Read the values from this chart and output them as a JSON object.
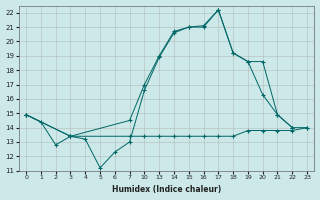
{
  "xlabel": "Humidex (Indice chaleur)",
  "bg_color": "#cce8e8",
  "grid_color": "#aaaaaa",
  "line_color": "#006666",
  "ylim": [
    11,
    22.5
  ],
  "yticks": [
    11,
    12,
    13,
    14,
    15,
    16,
    17,
    18,
    19,
    20,
    21,
    22
  ],
  "xtick_labels": [
    "0",
    "1",
    "2",
    "3",
    "4",
    "5",
    "6",
    "7",
    "10",
    "13",
    "14",
    "15",
    "16",
    "17",
    "18",
    "19",
    "20",
    "21",
    "22",
    "23"
  ],
  "line1_xi": [
    0,
    1,
    2,
    3,
    4,
    5,
    6,
    7,
    8,
    9,
    10,
    11,
    12,
    13,
    14,
    15,
    16,
    17,
    18
  ],
  "line1_y": [
    14.9,
    14.4,
    12.8,
    13.4,
    13.2,
    11.2,
    12.3,
    13.0,
    16.6,
    18.9,
    20.6,
    21.0,
    21.0,
    22.2,
    19.2,
    18.6,
    16.3,
    14.9,
    14.0
  ],
  "line2_xi": [
    0,
    3,
    7,
    8,
    9,
    10,
    11,
    12,
    13,
    14,
    15,
    16,
    17,
    18,
    19
  ],
  "line2_y": [
    14.9,
    13.4,
    13.4,
    13.4,
    13.4,
    13.4,
    13.4,
    13.4,
    13.4,
    13.4,
    13.8,
    13.8,
    13.8,
    13.8,
    14.0
  ],
  "line3_xi": [
    0,
    3,
    7,
    8,
    9,
    10,
    11,
    12,
    13,
    14,
    15,
    16,
    17,
    18,
    19
  ],
  "line3_y": [
    14.9,
    13.4,
    14.5,
    17.0,
    19.0,
    20.7,
    21.0,
    21.1,
    22.2,
    19.2,
    18.6,
    18.6,
    14.9,
    14.0,
    14.0
  ]
}
